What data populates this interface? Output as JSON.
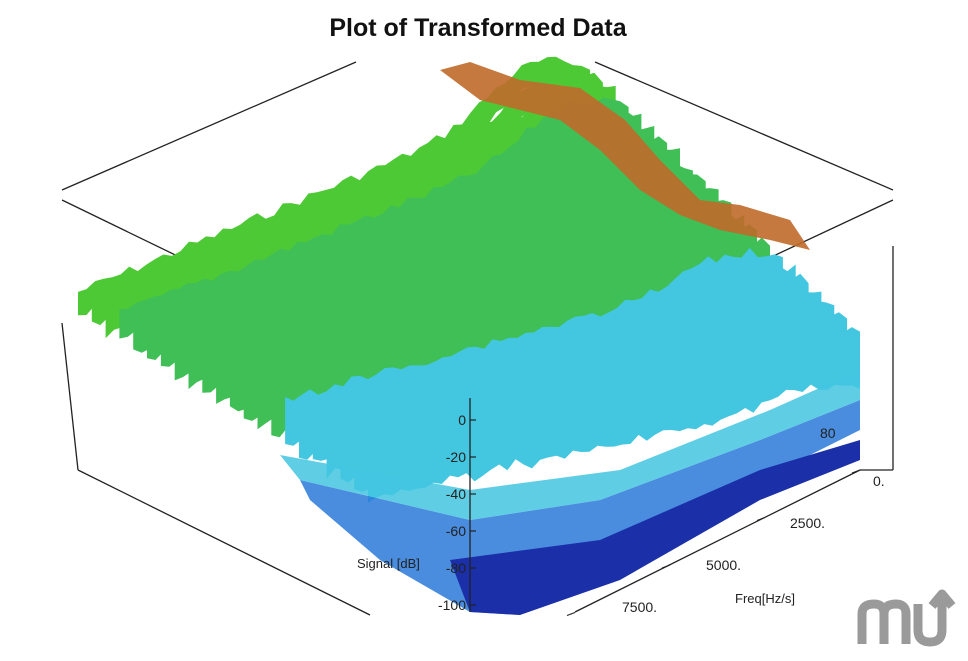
{
  "chart_data": {
    "type": "surface3d",
    "title": "Plot of Transformed Data",
    "zlabel": "Signal [dB]",
    "xlabel": "Freq[Hz/s]",
    "z_ticks": [
      "0",
      "-20",
      "-40",
      "-60",
      "-80",
      "-100"
    ],
    "x_ticks": [
      "0.",
      "2500.",
      "5000.",
      "7500."
    ],
    "y_ticks": [
      "80"
    ],
    "zlim": [
      -100,
      0
    ],
    "colormap": [
      "#1a2fa8",
      "#2a79d8",
      "#43c6e0",
      "#3fbf55",
      "#4ec936",
      "#8cc23a",
      "#c06a2a",
      "#a8441e"
    ],
    "grid": false
  },
  "watermark": {
    "text": "mu",
    "color": "#9a9a9a"
  }
}
